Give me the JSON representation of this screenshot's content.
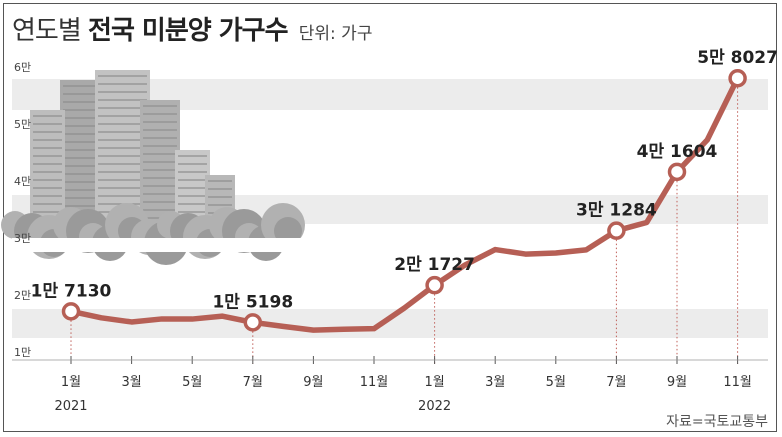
{
  "title_plain": "연도별",
  "title_bold": "전국 미분양 가구수",
  "unit": "단위: 가구",
  "source": "자료=국토교통부",
  "chart_data": {
    "type": "line",
    "x": [
      "2021-01",
      "2021-02",
      "2021-03",
      "2021-04",
      "2021-05",
      "2021-06",
      "2021-07",
      "2021-08",
      "2021-09",
      "2021-10",
      "2021-11",
      "2021-12",
      "2022-01",
      "2022-02",
      "2022-03",
      "2022-04",
      "2022-05",
      "2022-06",
      "2022-07",
      "2022-08",
      "2022-09",
      "2022-10",
      "2022-11"
    ],
    "series": [
      {
        "values": [
          17130,
          16000,
          15270,
          15800,
          15780,
          16290,
          15198,
          14500,
          13842,
          14000,
          14094,
          17710,
          21727,
          25250,
          27974,
          27180,
          27375,
          27910,
          31284,
          32722,
          41604,
          47217,
          58027
        ]
      }
    ],
    "x_tick_labels": [
      "1월",
      "3월",
      "5월",
      "7월",
      "9월",
      "11월",
      "1월",
      "3월",
      "5월",
      "7월",
      "9월",
      "11월"
    ],
    "year_labels": [
      "2021",
      "2022"
    ],
    "y_tick_labels": [
      "1만",
      "2만",
      "3만",
      "4만",
      "5만",
      "6만"
    ],
    "ylim": [
      10000,
      60000
    ],
    "data_labels": [
      {
        "index": 0,
        "prefix": "1만",
        "rest": "7130"
      },
      {
        "index": 6,
        "prefix": "1만",
        "rest": "5198"
      },
      {
        "index": 12,
        "prefix": "2만",
        "rest": "1727"
      },
      {
        "index": 18,
        "prefix": "3만",
        "rest": "1284"
      },
      {
        "index": 20,
        "prefix": "4만",
        "rest": "1604"
      },
      {
        "index": 22,
        "prefix": "5만",
        "rest": "8027"
      }
    ],
    "colors": {
      "line": "#b65f55",
      "band": "#ececec",
      "guide": "#c0605a"
    },
    "grid": "alternating-bands"
  }
}
